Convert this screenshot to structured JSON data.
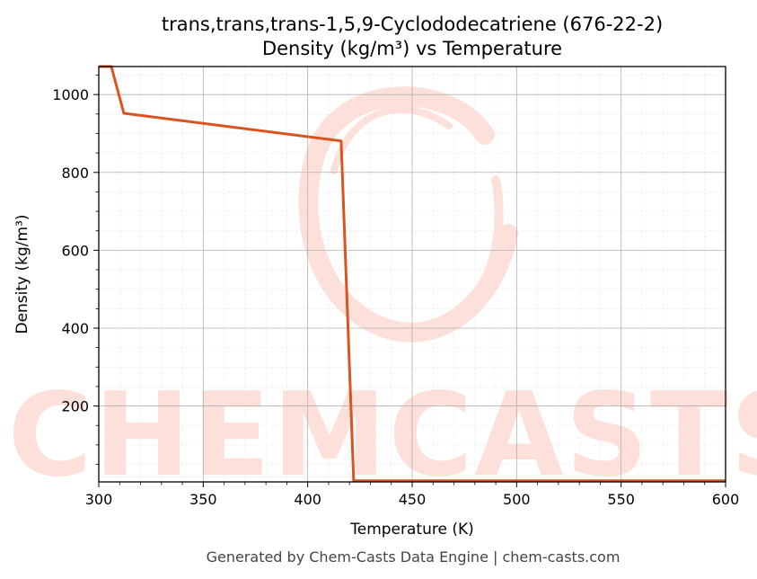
{
  "chart_data": {
    "type": "line",
    "title": "trans,trans,trans-1,5,9-Cyclododecatriene (676-22-2)",
    "subtitle": "Density (kg/m³) vs Temperature",
    "xlabel": "Temperature (K)",
    "ylabel": "Density (kg/m³)",
    "xlim": [
      300,
      600
    ],
    "ylim": [
      5,
      1072
    ],
    "xticks": [
      300,
      350,
      400,
      450,
      500,
      550,
      600
    ],
    "yticks": [
      200,
      400,
      600,
      800,
      1000
    ],
    "grid": true,
    "legend": "none",
    "series": [
      {
        "color": "#d9541e",
        "x": [
          300,
          306,
          312,
          416,
          422,
          600
        ],
        "y": [
          1072,
          1072,
          952,
          881,
          8,
          8
        ]
      }
    ]
  },
  "watermark": {
    "text": "CHEMCASTS",
    "color": "#fde0da"
  },
  "footer": "Generated by Chem-Casts Data Engine | chem-casts.com"
}
